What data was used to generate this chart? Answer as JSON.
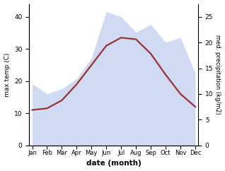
{
  "months": [
    "Jan",
    "Feb",
    "Mar",
    "Apr",
    "May",
    "Jun",
    "Jul",
    "Aug",
    "Sep",
    "Oct",
    "Nov",
    "Dec"
  ],
  "temp": [
    11.0,
    11.5,
    14.0,
    19.0,
    25.0,
    31.0,
    33.5,
    33.0,
    28.5,
    22.0,
    16.0,
    12.0
  ],
  "precip": [
    12.0,
    10.0,
    11.0,
    13.0,
    17.0,
    26.0,
    25.0,
    22.0,
    23.5,
    20.0,
    21.0,
    14.0
  ],
  "temp_ylim": [
    0,
    44
  ],
  "precip_ylim": [
    0,
    27.5
  ],
  "temp_yticks": [
    0,
    10,
    20,
    30,
    40
  ],
  "precip_yticks": [
    0,
    5,
    10,
    15,
    20,
    25
  ],
  "fill_color": "#c8d4f0",
  "fill_alpha": 0.85,
  "line_color": "#993333",
  "line_width": 1.6,
  "ylabel_left": "max temp (C)",
  "ylabel_right": "med. precipitation (kg/m2)",
  "xlabel": "date (month)",
  "bg_color": "#ffffff"
}
